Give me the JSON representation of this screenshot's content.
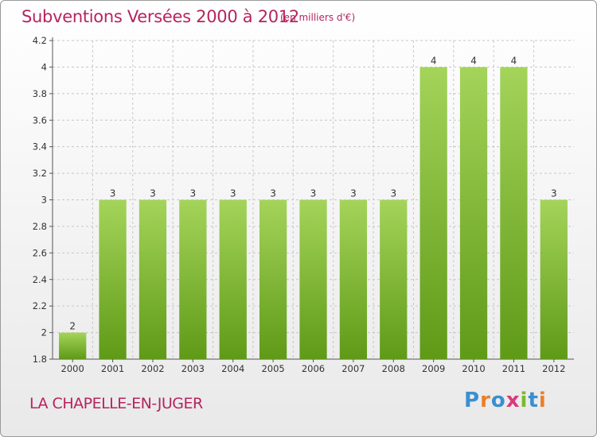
{
  "header": {
    "title": "Subventions Versées 2000 à 2012",
    "subtitle": "(en milliers d'€)"
  },
  "footer": {
    "commune": "LA CHAPELLE-EN-JUGER",
    "logo_text": "Proxiti",
    "logo_colors": [
      "#3a8fd1",
      "#e8802c",
      "#3a8fd1",
      "#d93a7a",
      "#7cb82f",
      "#3a8fd1",
      "#e8802c"
    ]
  },
  "colors": {
    "title": "#b5245f",
    "bar_top": "#a4d45a",
    "bar_bottom": "#5f9a17",
    "grid": "#c8c8c8"
  },
  "chart_data": {
    "type": "bar",
    "title": "Subventions Versées 2000 à 2012",
    "subtitle": "(en milliers d'€)",
    "categories": [
      "2000",
      "2001",
      "2002",
      "2003",
      "2004",
      "2005",
      "2006",
      "2007",
      "2008",
      "2009",
      "2010",
      "2011",
      "2012"
    ],
    "values": [
      2,
      3,
      3,
      3,
      3,
      3,
      3,
      3,
      3,
      4,
      4,
      4,
      3
    ],
    "data_labels": [
      "2",
      "3",
      "3",
      "3",
      "3",
      "3",
      "3",
      "3",
      "3",
      "4",
      "4",
      "4",
      "3"
    ],
    "ylim": [
      1.8,
      4.2
    ],
    "yticks": [
      1.8,
      2,
      2.2,
      2.4,
      2.6,
      2.8,
      3,
      3.2,
      3.4,
      3.6,
      3.8,
      4,
      4.2
    ],
    "ytick_labels": [
      "1.8",
      "2",
      "2.2",
      "2.4",
      "2.6",
      "2.8",
      "3",
      "3.2",
      "3.4",
      "3.6",
      "3.8",
      "4",
      "4.2"
    ],
    "grid": true,
    "xlabel": "",
    "ylabel": ""
  }
}
